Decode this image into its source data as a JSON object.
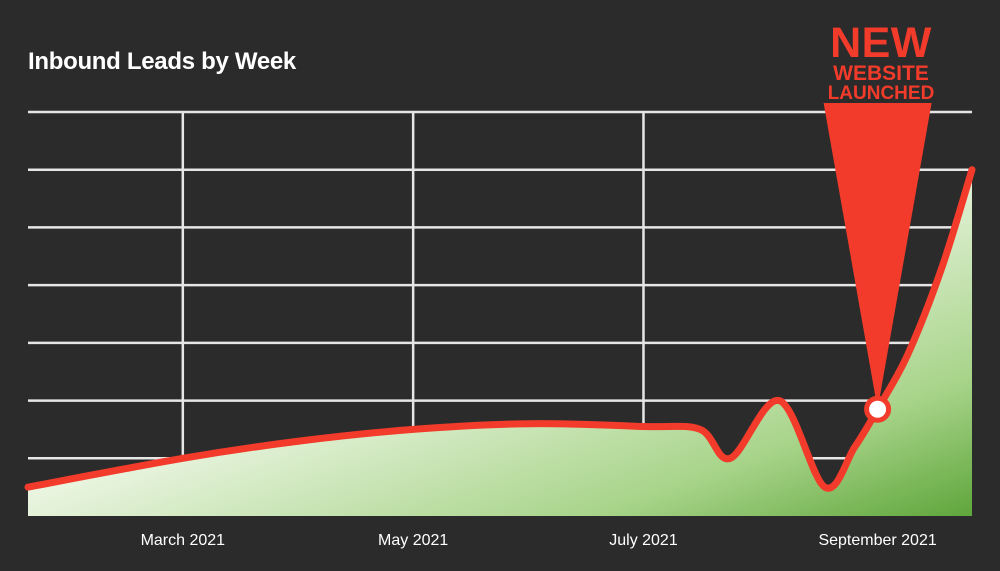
{
  "chart_data": {
    "type": "area",
    "title": "Inbound Leads by Week",
    "xlabel": "",
    "ylabel": "",
    "x_tick_labels": [
      "March 2021",
      "May 2021",
      "July 2021",
      "September 2021"
    ],
    "x_tick_dates": [
      "2021-03-01",
      "2021-05-01",
      "2021-07-01",
      "2021-09-01"
    ],
    "xlim": [
      "2021-01-19",
      "2021-09-26"
    ],
    "ylim": [
      0,
      7
    ],
    "y_gridlines": 7,
    "grid": true,
    "y_tick_labels_visible": false,
    "x": [
      "2021-01-19",
      "2021-03-01",
      "2021-04-01",
      "2021-05-01",
      "2021-06-01",
      "2021-07-01",
      "2021-07-16",
      "2021-07-24",
      "2021-08-06",
      "2021-08-18",
      "2021-08-26",
      "2021-09-01",
      "2021-09-09",
      "2021-09-18",
      "2021-09-26"
    ],
    "series": [
      {
        "values": [
          0.5,
          1.0,
          1.3,
          1.5,
          1.6,
          1.55,
          1.5,
          1.0,
          2.0,
          0.5,
          1.2,
          1.85,
          2.8,
          4.3,
          6.0
        ],
        "line_color": "#f23b2a",
        "fill_color": "#6db04a"
      }
    ],
    "annotation": {
      "lines": [
        "NEW",
        "WEBSITE",
        "LAUNCHED"
      ],
      "date": "2021-09-01",
      "value": 1.85,
      "color": "#f23b2a"
    }
  }
}
